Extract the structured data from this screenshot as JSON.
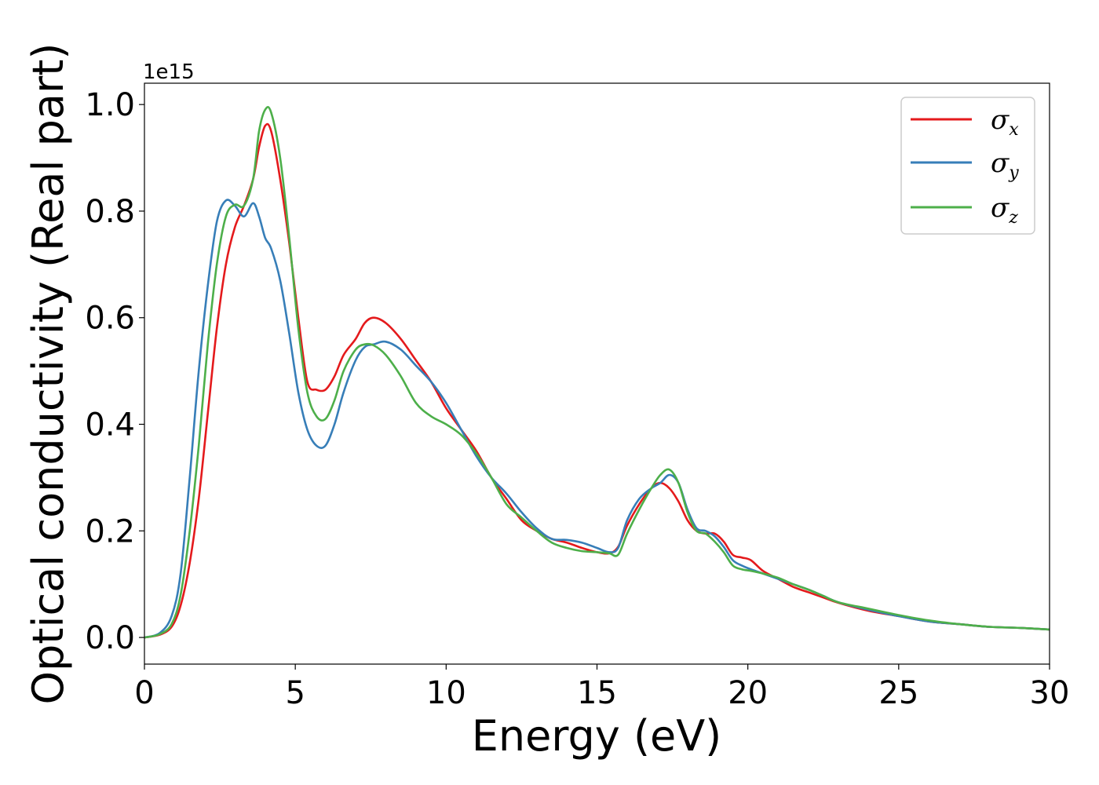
{
  "chart_data": {
    "type": "line",
    "xlabel": "Energy (eV)",
    "ylabel": "Optical conductivity (Real part)",
    "y_offset_label": "1e15",
    "xlim": [
      0,
      30
    ],
    "ylim": [
      -0.05,
      1.04
    ],
    "xticks": [
      0,
      5,
      10,
      15,
      20,
      25,
      30
    ],
    "xtick_labels": [
      "0",
      "5",
      "10",
      "15",
      "20",
      "25",
      "30"
    ],
    "yticks": [
      0.0,
      0.2,
      0.4,
      0.6,
      0.8,
      1.0
    ],
    "ytick_labels": [
      "0.0",
      "0.2",
      "0.4",
      "0.6",
      "0.8",
      "1.0"
    ],
    "grid": false,
    "legend_position": "top-right",
    "series": [
      {
        "name": "σ",
        "subscript": "x",
        "color": "#e41a1c",
        "x": [
          0,
          0.5,
          0.9,
          1.2,
          1.5,
          1.8,
          2.1,
          2.4,
          2.7,
          3.0,
          3.3,
          3.6,
          3.8,
          4.0,
          4.2,
          4.5,
          4.8,
          5.1,
          5.4,
          5.7,
          6.0,
          6.3,
          6.6,
          7.0,
          7.3,
          7.6,
          8.0,
          8.5,
          9.0,
          9.5,
          10.0,
          10.5,
          11.0,
          11.5,
          12.0,
          12.5,
          13.0,
          13.5,
          14.0,
          14.5,
          15.0,
          15.4,
          15.7,
          16.0,
          16.4,
          16.8,
          17.1,
          17.4,
          17.7,
          18.0,
          18.3,
          18.6,
          18.9,
          19.2,
          19.5,
          19.8,
          20.1,
          20.5,
          21.0,
          21.5,
          22.0,
          22.5,
          23.0,
          24.0,
          25.0,
          26.0,
          27.0,
          28.0,
          29.0,
          30.0
        ],
        "y": [
          0.0,
          0.005,
          0.02,
          0.06,
          0.14,
          0.26,
          0.42,
          0.58,
          0.7,
          0.77,
          0.81,
          0.86,
          0.92,
          0.96,
          0.95,
          0.86,
          0.74,
          0.6,
          0.48,
          0.465,
          0.465,
          0.49,
          0.53,
          0.56,
          0.59,
          0.6,
          0.59,
          0.56,
          0.52,
          0.48,
          0.43,
          0.39,
          0.35,
          0.3,
          0.26,
          0.22,
          0.2,
          0.185,
          0.178,
          0.168,
          0.16,
          0.158,
          0.17,
          0.21,
          0.25,
          0.28,
          0.29,
          0.28,
          0.255,
          0.22,
          0.2,
          0.195,
          0.195,
          0.18,
          0.155,
          0.15,
          0.145,
          0.125,
          0.11,
          0.095,
          0.085,
          0.075,
          0.065,
          0.05,
          0.04,
          0.03,
          0.025,
          0.02,
          0.018,
          0.015
        ]
      },
      {
        "name": "σ",
        "subscript": "y",
        "color": "#377eb8",
        "x": [
          0,
          0.5,
          0.9,
          1.2,
          1.5,
          1.8,
          2.1,
          2.4,
          2.7,
          3.0,
          3.3,
          3.6,
          3.8,
          4.0,
          4.2,
          4.5,
          4.8,
          5.1,
          5.4,
          5.7,
          6.0,
          6.3,
          6.6,
          7.0,
          7.3,
          7.6,
          8.0,
          8.5,
          9.0,
          9.5,
          10.0,
          10.5,
          11.0,
          11.5,
          12.0,
          12.5,
          13.0,
          13.5,
          14.0,
          14.5,
          15.0,
          15.4,
          15.7,
          16.0,
          16.4,
          16.8,
          17.1,
          17.4,
          17.7,
          18.0,
          18.3,
          18.6,
          18.9,
          19.2,
          19.5,
          19.8,
          20.1,
          20.5,
          21.0,
          21.5,
          22.0,
          22.5,
          23.0,
          24.0,
          25.0,
          26.0,
          27.0,
          28.0,
          29.0,
          30.0
        ],
        "y": [
          0.0,
          0.008,
          0.04,
          0.12,
          0.3,
          0.5,
          0.66,
          0.78,
          0.82,
          0.81,
          0.79,
          0.815,
          0.79,
          0.75,
          0.73,
          0.67,
          0.57,
          0.46,
          0.39,
          0.36,
          0.36,
          0.4,
          0.46,
          0.52,
          0.545,
          0.55,
          0.555,
          0.54,
          0.51,
          0.48,
          0.44,
          0.39,
          0.34,
          0.3,
          0.27,
          0.235,
          0.205,
          0.185,
          0.183,
          0.178,
          0.168,
          0.16,
          0.168,
          0.22,
          0.26,
          0.28,
          0.29,
          0.305,
          0.29,
          0.24,
          0.205,
          0.2,
          0.19,
          0.17,
          0.145,
          0.135,
          0.128,
          0.12,
          0.11,
          0.1,
          0.09,
          0.078,
          0.066,
          0.052,
          0.04,
          0.03,
          0.025,
          0.02,
          0.018,
          0.015
        ]
      },
      {
        "name": "σ",
        "subscript": "z",
        "color": "#4daf4a",
        "x": [
          0,
          0.5,
          0.9,
          1.2,
          1.5,
          1.8,
          2.1,
          2.4,
          2.7,
          3.0,
          3.3,
          3.6,
          3.8,
          4.0,
          4.2,
          4.5,
          4.8,
          5.1,
          5.4,
          5.7,
          6.0,
          6.3,
          6.6,
          7.0,
          7.3,
          7.6,
          8.0,
          8.5,
          9.0,
          9.5,
          10.0,
          10.5,
          11.0,
          11.5,
          12.0,
          12.5,
          13.0,
          13.5,
          14.0,
          14.5,
          15.0,
          15.4,
          15.7,
          16.0,
          16.4,
          16.8,
          17.1,
          17.4,
          17.7,
          18.0,
          18.3,
          18.6,
          18.9,
          19.2,
          19.5,
          19.8,
          20.1,
          20.5,
          21.0,
          21.5,
          22.0,
          22.5,
          23.0,
          24.0,
          25.0,
          26.0,
          27.0,
          28.0,
          29.0,
          30.0
        ],
        "y": [
          0.0,
          0.006,
          0.025,
          0.08,
          0.2,
          0.36,
          0.55,
          0.7,
          0.79,
          0.812,
          0.81,
          0.86,
          0.95,
          0.99,
          0.985,
          0.9,
          0.75,
          0.58,
          0.46,
          0.415,
          0.41,
          0.445,
          0.5,
          0.54,
          0.55,
          0.548,
          0.53,
          0.49,
          0.44,
          0.415,
          0.4,
          0.38,
          0.345,
          0.3,
          0.25,
          0.225,
          0.2,
          0.178,
          0.168,
          0.162,
          0.16,
          0.158,
          0.155,
          0.195,
          0.24,
          0.28,
          0.305,
          0.315,
          0.29,
          0.235,
          0.2,
          0.195,
          0.18,
          0.16,
          0.135,
          0.128,
          0.125,
          0.12,
          0.112,
          0.1,
          0.09,
          0.078,
          0.066,
          0.054,
          0.042,
          0.032,
          0.025,
          0.02,
          0.018,
          0.015
        ]
      }
    ]
  }
}
